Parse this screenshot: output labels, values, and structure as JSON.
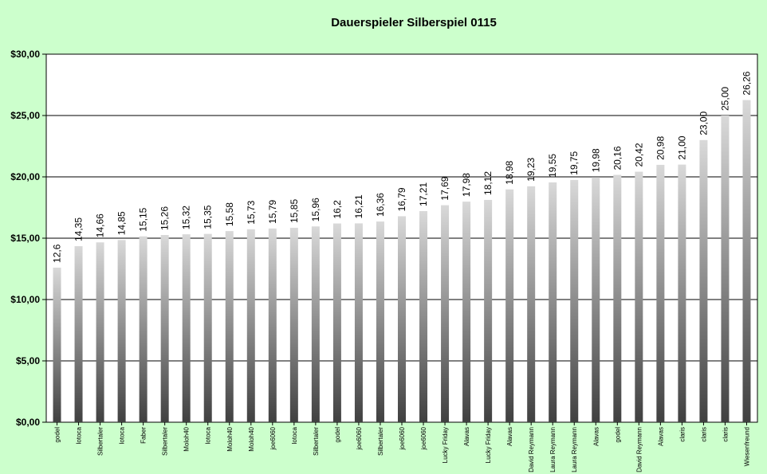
{
  "chart_data": {
    "type": "bar",
    "title": "Dauerspieler Silberspiel 0115",
    "xlabel": "",
    "ylabel": "",
    "ylim": [
      0,
      30
    ],
    "y_ticks": [
      "$0,00",
      "$5,00",
      "$10,00",
      "$15,00",
      "$20,00",
      "$25,00",
      "$30,00"
    ],
    "grid": true,
    "legend": "none",
    "colors": {
      "background": "#ccffcc",
      "plot_area": "#ffffff",
      "bar_top": "#d9d9d9",
      "bar_bottom": "#404040",
      "gridline": "#000000"
    },
    "categories": [
      "godel",
      "Iotoca",
      "Silbertaler",
      "Iotoca",
      "Faber",
      "Silbertaler",
      "Moloh40",
      "Iotoca",
      "Moloh40",
      "Moloh40",
      "joe6060",
      "Iotoca",
      "Silbertaler",
      "godel",
      "joe6060",
      "Silbertaler",
      "joe6060",
      "joe6060",
      "Lucky Friday",
      "Alavas",
      "Lucky Friday",
      "Alavas",
      "David Reymann",
      "Laura Reymann",
      "Laura Reymann",
      "Alavas",
      "godel",
      "David Reymann",
      "Alavas",
      "claris",
      "claris",
      "claris",
      "Wiesenfreund"
    ],
    "values": [
      12.6,
      14.35,
      14.66,
      14.85,
      15.15,
      15.26,
      15.32,
      15.35,
      15.58,
      15.73,
      15.79,
      15.85,
      15.96,
      16.2,
      16.21,
      16.36,
      16.79,
      17.21,
      17.69,
      17.98,
      18.12,
      18.98,
      19.23,
      19.55,
      19.75,
      19.98,
      20.16,
      20.42,
      20.98,
      21.0,
      23.0,
      25.0,
      26.26
    ],
    "data_labels": [
      "12,6",
      "14,35",
      "14,66",
      "14,85",
      "15,15",
      "15,26",
      "15,32",
      "15,35",
      "15,58",
      "15,73",
      "15,79",
      "15,85",
      "15,96",
      "16,2",
      "16,21",
      "16,36",
      "16,79",
      "17,21",
      "17,69",
      "17,98",
      "18,12",
      "18,98",
      "19,23",
      "19,55",
      "19,75",
      "19,98",
      "20,16",
      "20,42",
      "20,98",
      "21,00",
      "23,00",
      "25,00",
      "26,26"
    ]
  }
}
